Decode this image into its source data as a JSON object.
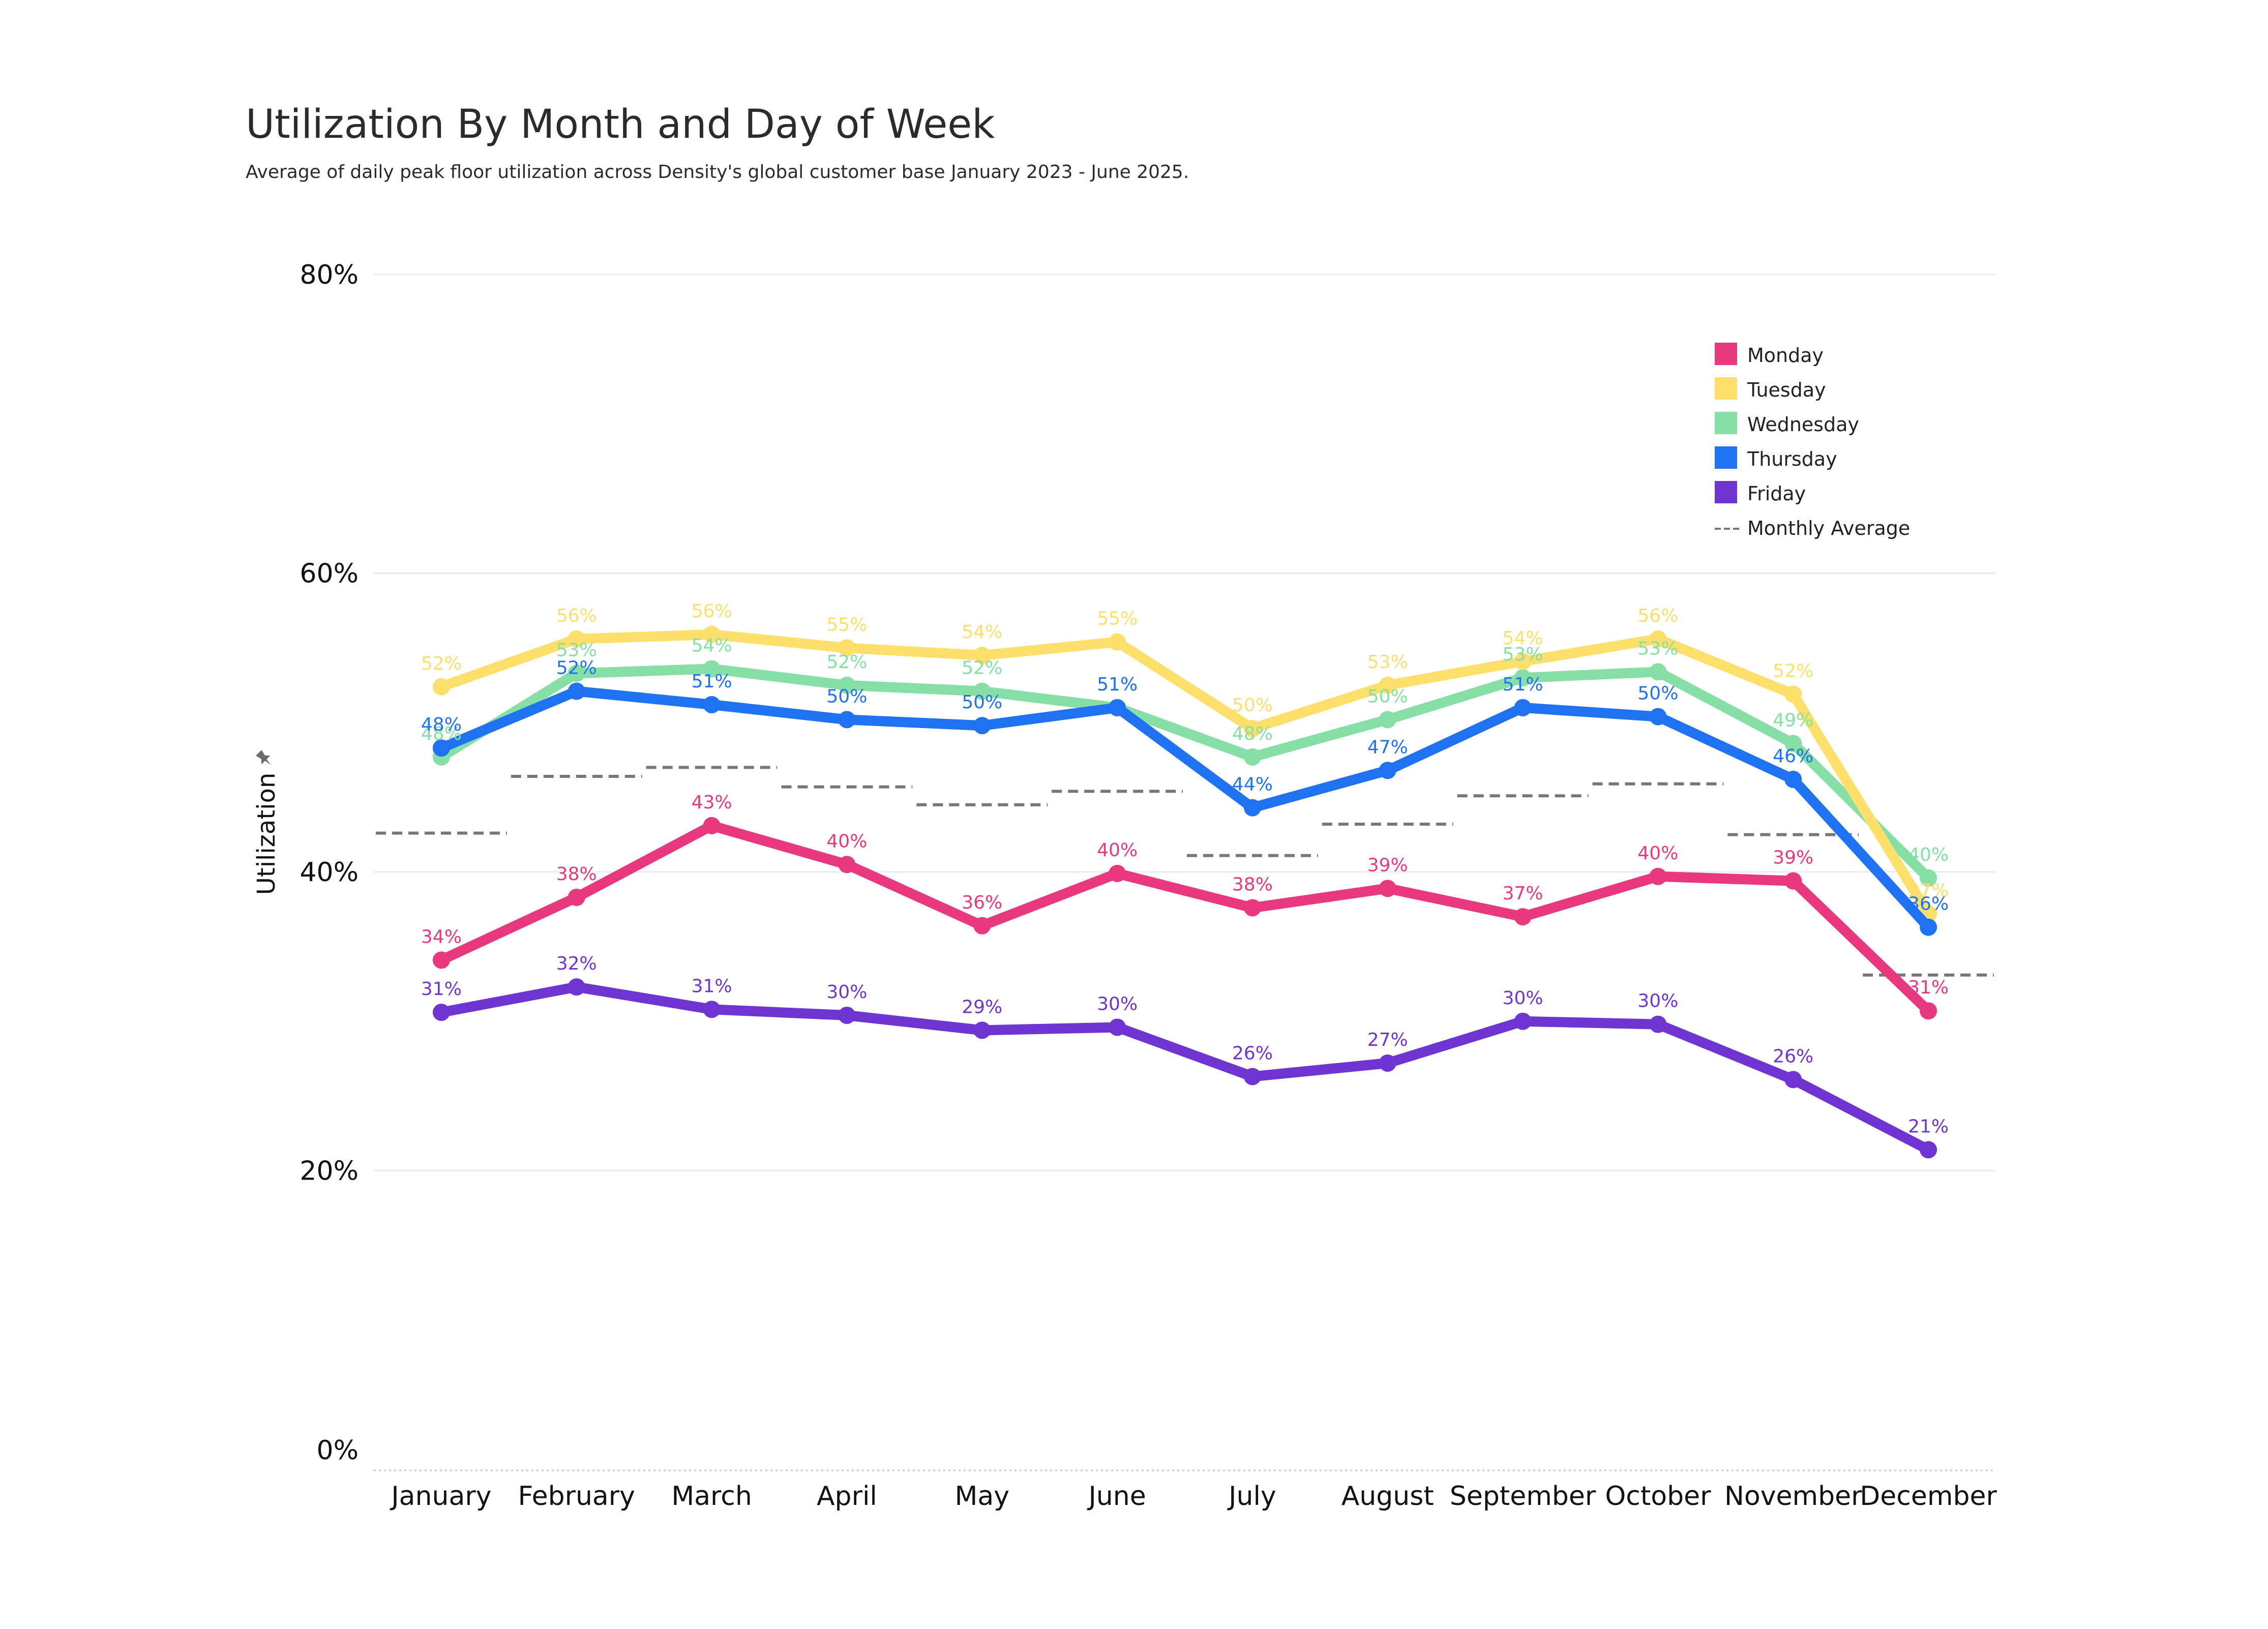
{
  "chart_data": {
    "type": "line",
    "title": "Utilization By Month and Day of Week",
    "subtitle": "Average of daily peak floor utilization across Density's global customer base January 2023 - June 2025.",
    "ylabel": "Utilization",
    "xlabel": "",
    "ylim": [
      0,
      80
    ],
    "yticks": [
      "0%",
      "20%",
      "40%",
      "60%",
      "80%"
    ],
    "ytick_values": [
      0,
      20,
      40,
      60,
      80
    ],
    "categories": [
      "January",
      "February",
      "March",
      "April",
      "May",
      "June",
      "July",
      "August",
      "September",
      "October",
      "November",
      "December"
    ],
    "grid": "horizontal",
    "legend_position": "top-right",
    "series": [
      {
        "name": "Monday",
        "color": "#e8397f",
        "values": [
          34.1,
          38.3,
          43.1,
          40.5,
          36.4,
          39.9,
          37.6,
          38.9,
          37.0,
          39.7,
          39.4,
          30.7
        ],
        "labels": [
          "34%",
          "38%",
          "43%",
          "40%",
          "36%",
          "40%",
          "38%",
          "39%",
          "37%",
          "40%",
          "39%",
          "31%"
        ]
      },
      {
        "name": "Tuesday",
        "color": "#fddf6c",
        "values": [
          52.4,
          55.6,
          55.9,
          55.0,
          54.5,
          55.4,
          49.6,
          52.5,
          54.1,
          55.6,
          51.9,
          37.2
        ],
        "labels": [
          "52%",
          "56%",
          "56%",
          "55%",
          "54%",
          "55%",
          "50%",
          "53%",
          "54%",
          "56%",
          "52%",
          "37%"
        ]
      },
      {
        "name": "Wednesday",
        "color": "#86e0a6",
        "values": [
          47.7,
          53.3,
          53.6,
          52.5,
          52.1,
          51.0,
          47.7,
          50.2,
          53.0,
          53.4,
          48.6,
          39.6
        ],
        "labels": [
          "48%",
          "53%",
          "54%",
          "52%",
          "52%",
          "51%",
          "48%",
          "50%",
          "53%",
          "53%",
          "49%",
          "40%"
        ]
      },
      {
        "name": "Thursday",
        "color": "#1f72f2",
        "values": [
          48.3,
          52.1,
          51.2,
          50.2,
          49.8,
          51.0,
          44.3,
          46.8,
          51.0,
          50.4,
          46.2,
          36.3
        ],
        "labels": [
          "48%",
          "52%",
          "51%",
          "50%",
          "50%",
          "51%",
          "44%",
          "47%",
          "51%",
          "50%",
          "46%",
          "36%"
        ]
      },
      {
        "name": "Friday",
        "color": "#6f35d2",
        "values": [
          30.6,
          32.3,
          30.8,
          30.4,
          29.4,
          29.6,
          26.3,
          27.2,
          30.0,
          29.8,
          26.1,
          21.4
        ],
        "labels": [
          "31%",
          "32%",
          "31%",
          "30%",
          "29%",
          "30%",
          "26%",
          "27%",
          "30%",
          "30%",
          "26%",
          "21%"
        ]
      }
    ],
    "monthly_average": {
      "name": "Monthly Average",
      "color": "#777777",
      "values": [
        42.6,
        46.4,
        47.0,
        45.7,
        44.5,
        45.4,
        41.1,
        43.2,
        45.1,
        45.9,
        42.5,
        33.1
      ]
    }
  }
}
